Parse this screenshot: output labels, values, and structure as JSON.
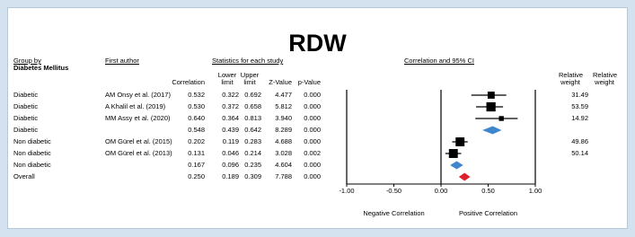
{
  "chart_data": {
    "type": "forest",
    "title": "RDW",
    "headers": {
      "group_by": "Group by",
      "group_name": "Diabetes Mellitus",
      "first_author": "First author",
      "stats": "Statistics for each study",
      "plot": "Correlation and 95% CI",
      "columns": [
        "Correlation",
        "Lower limit",
        "Upper limit",
        "Z-Value",
        "p-Value"
      ],
      "weights": [
        "Relative weight",
        "Relative weight"
      ]
    },
    "rows": [
      {
        "group": "Diabetic",
        "author": "AM Onsy et al. (2017)",
        "kind": "study",
        "cells": [
          "0.532",
          "0.322",
          "0.692",
          "4.477",
          "0.000"
        ],
        "weight": "31.49"
      },
      {
        "group": "Diabetic",
        "author": "A Khalil et al. (2019)",
        "kind": "study",
        "cells": [
          "0.530",
          "0.372",
          "0.658",
          "5.812",
          "0.000"
        ],
        "weight": "53.59"
      },
      {
        "group": "Diabetic",
        "author": "MM Assy et al. (2020)",
        "kind": "study",
        "cells": [
          "0.640",
          "0.364",
          "0.813",
          "3.940",
          "0.000"
        ],
        "weight": "14.92"
      },
      {
        "group": "Diabetic",
        "author": null,
        "kind": "subtotal",
        "cells": [
          "0.548",
          "0.439",
          "0.642",
          "8.289",
          "0.000"
        ],
        "weight": null
      },
      {
        "group": "Non diabetic",
        "author": "OM Gürel et al. (2015)",
        "kind": "study",
        "cells": [
          "0.202",
          "0.119",
          "0.283",
          "4.688",
          "0.000"
        ],
        "weight": "49.86"
      },
      {
        "group": "Non diabetic",
        "author": "OM Gürel et al. (2013)",
        "kind": "study",
        "cells": [
          "0.131",
          "0.046",
          "0.214",
          "3.028",
          "0.002"
        ],
        "weight": "50.14"
      },
      {
        "group": "Non diabetic",
        "author": null,
        "kind": "subtotal",
        "cells": [
          "0.167",
          "0.096",
          "0.235",
          "4.604",
          "0.000"
        ],
        "weight": null
      },
      {
        "group": "Overall",
        "author": null,
        "kind": "overall",
        "cells": [
          "0.250",
          "0.189",
          "0.309",
          "7.788",
          "0.000"
        ],
        "weight": null
      }
    ],
    "xlim": [
      -1,
      1
    ],
    "xticks": [
      {
        "value": -1,
        "label": "-1.00"
      },
      {
        "value": -0.5,
        "label": "-0.50"
      },
      {
        "value": 0,
        "label": "0.00"
      },
      {
        "value": 0.5,
        "label": "0.50"
      },
      {
        "value": 1,
        "label": "1.00"
      }
    ],
    "xlabels": [
      "Negative Correlation",
      "Positive Correlation"
    ],
    "colors": {
      "study": "#000000",
      "subtotal": "#3f87cc",
      "overall": "#e0202a"
    }
  }
}
